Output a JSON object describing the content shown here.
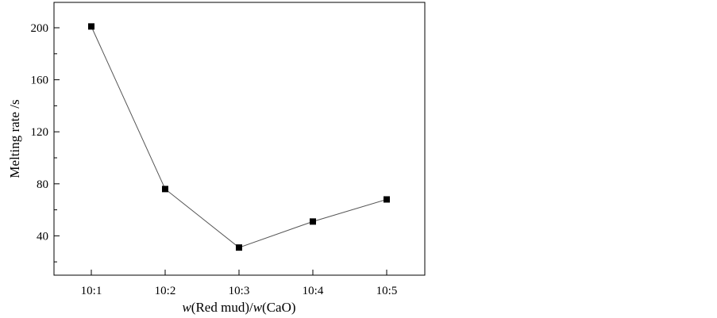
{
  "chart_data": {
    "type": "line",
    "categories": [
      "10:1",
      "10:2",
      "10:3",
      "10:4",
      "10:5"
    ],
    "series": [
      {
        "values": [
          201,
          76,
          31,
          51,
          68
        ]
      }
    ],
    "ylabel": "Melting rate /s",
    "xlabel_parts": [
      {
        "text": "w",
        "italic": true
      },
      {
        "text": "(Red mud)/",
        "italic": false
      },
      {
        "text": "w",
        "italic": true
      },
      {
        "text": "(CaO)",
        "italic": false
      }
    ],
    "ylim": [
      0,
      220
    ],
    "yticks": [
      40,
      80,
      120,
      160,
      200
    ],
    "grid": false,
    "legend": "none",
    "colors": {
      "line": "#555555",
      "marker": "#000000",
      "axis": "#000000"
    }
  }
}
